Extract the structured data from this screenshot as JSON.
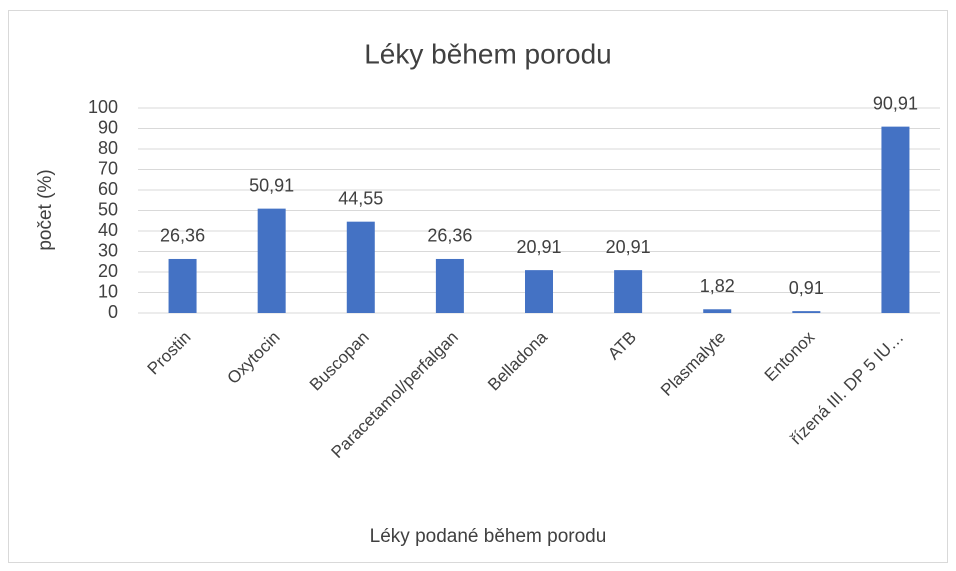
{
  "chart_data": {
    "type": "bar",
    "title": "Léky během porodu",
    "x_label": "Léky podané během porodu",
    "y_label": "počet (%)",
    "categories": [
      "Prostin",
      "Oxytocin",
      "Buscopan",
      "Paracetamol/perfalgan",
      "Belladona",
      "ATB",
      "Plasmalyte",
      "Entonox",
      "řízená III. DP 5 IU…"
    ],
    "values": [
      26.36,
      50.91,
      44.55,
      26.36,
      20.91,
      20.91,
      1.82,
      0.91,
      90.91
    ],
    "value_labels": [
      "26,36",
      "50,91",
      "44,55",
      "26,36",
      "20,91",
      "20,91",
      "1,82",
      "0,91",
      "90,91"
    ],
    "color": "#4472c4",
    "ylim": [
      0,
      100
    ],
    "yticks": [
      0,
      10,
      20,
      30,
      40,
      50,
      60,
      70,
      80,
      90,
      100
    ],
    "grid": true
  }
}
